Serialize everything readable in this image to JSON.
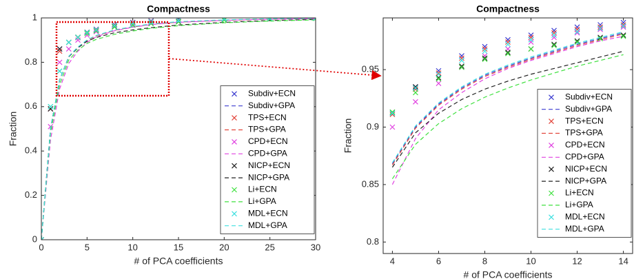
{
  "chart_data": [
    {
      "type": "line",
      "title": "Compactness",
      "x_label": "# of PCA coefficients",
      "y_label": "Fraction",
      "x": [
        0,
        1,
        2,
        3,
        4,
        5,
        6,
        8,
        10,
        12,
        15,
        20,
        25,
        30
      ],
      "xlim": [
        0,
        30
      ],
      "ylim": [
        0,
        1
      ],
      "xticks": [
        0,
        5,
        10,
        15,
        20,
        25,
        30
      ],
      "yticks": [
        0,
        0.2,
        0.4,
        0.6,
        0.8,
        1
      ],
      "legend": "right",
      "series": [
        {
          "name": "Subdiv+ECN",
          "color": "#3a3acf",
          "marker": "x",
          "values": [
            0,
            0.59,
            0.86,
            0.89,
            0.912,
            0.935,
            0.949,
            0.97,
            0.98,
            0.987,
            0.992,
            0.996,
            0.998,
            0.999
          ]
        },
        {
          "name": "Subdiv+GPA",
          "color": "#3a3acf",
          "line_style": "dashed",
          "values": [
            0,
            0.5,
            0.72,
            0.826,
            0.868,
            0.9,
            0.92,
            0.945,
            0.96,
            0.972,
            0.982,
            0.99,
            0.995,
            0.998
          ]
        },
        {
          "name": "TPS+ECN",
          "color": "#e2443a",
          "marker": "x",
          "values": [
            0,
            0.59,
            0.85,
            0.89,
            0.911,
            0.933,
            0.947,
            0.968,
            0.978,
            0.985,
            0.991,
            0.995,
            0.998,
            0.999
          ]
        },
        {
          "name": "TPS+GPA",
          "color": "#e2443a",
          "line_style": "dashed",
          "values": [
            0,
            0.5,
            0.72,
            0.825,
            0.867,
            0.899,
            0.919,
            0.944,
            0.959,
            0.971,
            0.981,
            0.989,
            0.994,
            0.997
          ]
        },
        {
          "name": "CPD+ECN",
          "color": "#e040e0",
          "marker": "x",
          "values": [
            0,
            0.51,
            0.8,
            0.86,
            0.9,
            0.922,
            0.938,
            0.962,
            0.974,
            0.982,
            0.989,
            0.994,
            0.997,
            0.999
          ]
        },
        {
          "name": "CPD+GPA",
          "color": "#e040e0",
          "line_style": "dashed",
          "values": [
            0,
            0.45,
            0.68,
            0.795,
            0.85,
            0.89,
            0.915,
            0.942,
            0.958,
            0.97,
            0.98,
            0.989,
            0.994,
            0.997
          ]
        },
        {
          "name": "NICP+ECN",
          "color": "#222222",
          "marker": "x",
          "values": [
            0,
            0.59,
            0.86,
            0.89,
            0.913,
            0.935,
            0.943,
            0.96,
            0.968,
            0.975,
            0.983,
            0.991,
            0.995,
            0.998
          ]
        },
        {
          "name": "NICP+GPA",
          "color": "#222222",
          "line_style": "dashed",
          "values": [
            0,
            0.5,
            0.72,
            0.825,
            0.865,
            0.895,
            0.912,
            0.933,
            0.946,
            0.956,
            0.968,
            0.98,
            0.988,
            0.993
          ]
        },
        {
          "name": "Li+ECN",
          "color": "#3ee03e",
          "marker": "x",
          "values": [
            0,
            0.6,
            0.76,
            0.89,
            0.913,
            0.93,
            0.942,
            0.959,
            0.968,
            0.974,
            0.982,
            0.99,
            0.995,
            0.998
          ]
        },
        {
          "name": "Li+GPA",
          "color": "#3ee03e",
          "line_style": "dashed",
          "values": [
            0,
            0.48,
            0.7,
            0.81,
            0.855,
            0.885,
            0.903,
            0.926,
            0.941,
            0.953,
            0.965,
            0.978,
            0.986,
            0.991
          ]
        },
        {
          "name": "MDL+ECN",
          "color": "#3ee0e0",
          "marker": "x",
          "values": [
            0,
            0.6,
            0.76,
            0.89,
            0.912,
            0.934,
            0.946,
            0.966,
            0.976,
            0.983,
            0.99,
            0.995,
            0.998,
            0.999
          ]
        },
        {
          "name": "MDL+GPA",
          "color": "#3ee0e0",
          "line_style": "dashed",
          "values": [
            0,
            0.5,
            0.72,
            0.827,
            0.869,
            0.901,
            0.921,
            0.946,
            0.961,
            0.973,
            0.983,
            0.991,
            0.996,
            0.998
          ]
        }
      ]
    },
    {
      "type": "line",
      "title": "Compactness",
      "x_label": "# of PCA coefficients",
      "y_label": "Fraction",
      "x": [
        4,
        5,
        6,
        7,
        8,
        9,
        10,
        11,
        12,
        13,
        14
      ],
      "xlim": [
        3.6,
        14.4
      ],
      "ylim": [
        0.79,
        0.995
      ],
      "xticks": [
        4,
        6,
        8,
        10,
        12,
        14
      ],
      "yticks": [
        0.8,
        0.85,
        0.9,
        0.95
      ],
      "legend": "right",
      "series": [
        {
          "name": "Subdiv+ECN",
          "color": "#3a3acf",
          "marker": "x",
          "values": [
            0.912,
            0.935,
            0.949,
            0.962,
            0.97,
            0.976,
            0.98,
            0.984,
            0.987,
            0.989,
            0.991
          ]
        },
        {
          "name": "Subdiv+GPA",
          "color": "#3a3acf",
          "line_style": "dashed",
          "values": [
            0.868,
            0.9,
            0.92,
            0.934,
            0.945,
            0.953,
            0.96,
            0.966,
            0.972,
            0.977,
            0.982
          ]
        },
        {
          "name": "TPS+ECN",
          "color": "#e2443a",
          "marker": "x",
          "values": [
            0.911,
            0.933,
            0.947,
            0.96,
            0.968,
            0.974,
            0.978,
            0.982,
            0.985,
            0.987,
            0.989
          ]
        },
        {
          "name": "TPS+GPA",
          "color": "#e2443a",
          "line_style": "dashed",
          "values": [
            0.867,
            0.899,
            0.919,
            0.933,
            0.944,
            0.952,
            0.959,
            0.965,
            0.971,
            0.976,
            0.981
          ]
        },
        {
          "name": "CPD+ECN",
          "color": "#e040e0",
          "marker": "x",
          "values": [
            0.9,
            0.922,
            0.938,
            0.952,
            0.962,
            0.968,
            0.974,
            0.978,
            0.982,
            0.985,
            0.987
          ]
        },
        {
          "name": "CPD+GPA",
          "color": "#e040e0",
          "line_style": "dashed",
          "values": [
            0.85,
            0.89,
            0.915,
            0.93,
            0.942,
            0.951,
            0.958,
            0.964,
            0.97,
            0.975,
            0.979
          ]
        },
        {
          "name": "NICP+ECN",
          "color": "#222222",
          "marker": "x",
          "values": [
            0.913,
            0.935,
            0.943,
            0.953,
            0.96,
            0.965,
            0.968,
            0.972,
            0.975,
            0.978,
            0.98
          ]
        },
        {
          "name": "NICP+GPA",
          "color": "#222222",
          "line_style": "dashed",
          "values": [
            0.865,
            0.895,
            0.912,
            0.924,
            0.933,
            0.94,
            0.946,
            0.951,
            0.956,
            0.961,
            0.966
          ]
        },
        {
          "name": "Li+ECN",
          "color": "#3ee03e",
          "marker": "x",
          "values": [
            0.913,
            0.93,
            0.942,
            0.952,
            0.959,
            0.964,
            0.968,
            0.971,
            0.974,
            0.977,
            0.979
          ]
        },
        {
          "name": "Li+GPA",
          "color": "#3ee03e",
          "line_style": "dashed",
          "values": [
            0.855,
            0.885,
            0.903,
            0.916,
            0.926,
            0.934,
            0.941,
            0.947,
            0.953,
            0.958,
            0.963
          ]
        },
        {
          "name": "MDL+ECN",
          "color": "#3ee0e0",
          "marker": "x",
          "values": [
            0.912,
            0.934,
            0.946,
            0.958,
            0.966,
            0.972,
            0.976,
            0.98,
            0.983,
            0.986,
            0.988
          ]
        },
        {
          "name": "MDL+GPA",
          "color": "#3ee0e0",
          "line_style": "dashed",
          "values": [
            0.869,
            0.901,
            0.921,
            0.935,
            0.946,
            0.954,
            0.961,
            0.967,
            0.973,
            0.978,
            0.983
          ]
        }
      ]
    }
  ]
}
